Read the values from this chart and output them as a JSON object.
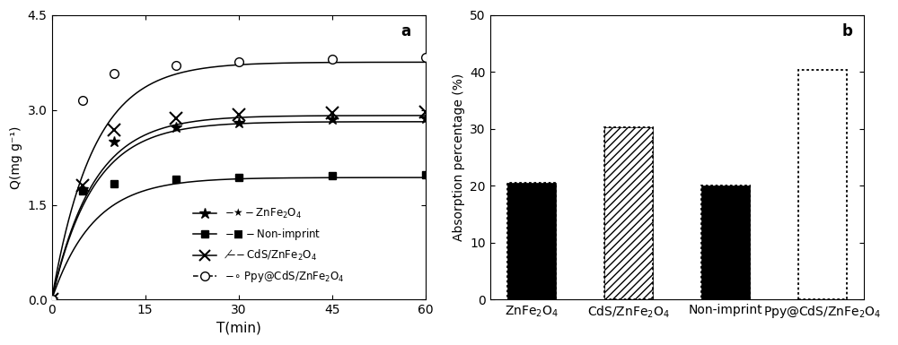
{
  "panel_a": {
    "title": "a",
    "xlabel": "T(min)",
    "ylabel": "Q(mg g⁻¹)",
    "xlim": [
      0,
      60
    ],
    "ylim": [
      0.0,
      4.5
    ],
    "yticks": [
      0.0,
      1.5,
      3.0,
      4.5
    ],
    "xticks": [
      0,
      15,
      30,
      45,
      60
    ],
    "series": {
      "ZnFe2O4": {
        "data_x": [
          0,
          5,
          10,
          20,
          30,
          45,
          60
        ],
        "data_y": [
          0.0,
          1.75,
          2.5,
          2.72,
          2.8,
          2.85,
          2.87
        ]
      },
      "Non-imprint": {
        "data_x": [
          0,
          5,
          10,
          20,
          30,
          45,
          60
        ],
        "data_y": [
          0.0,
          1.72,
          1.83,
          1.9,
          1.93,
          1.96,
          1.97
        ]
      },
      "CdS/ZnFe2O4": {
        "data_x": [
          0,
          5,
          10,
          20,
          30,
          45,
          60
        ],
        "data_y": [
          0.0,
          1.8,
          2.68,
          2.86,
          2.92,
          2.95,
          2.97
        ]
      },
      "Ppy@CdS/ZnFe2O4": {
        "data_x": [
          0,
          5,
          10,
          20,
          30,
          45,
          60
        ],
        "data_y": [
          0.0,
          3.15,
          3.58,
          3.7,
          3.76,
          3.8,
          3.83
        ]
      }
    }
  },
  "panel_b": {
    "title": "b",
    "ylabel": "Absorption percentage (%)",
    "ylim": [
      0,
      50
    ],
    "yticks": [
      0,
      10,
      20,
      30,
      40,
      50
    ],
    "categories": [
      "ZnFe₂O₄",
      "CdS/ZnFe₂O₄",
      "Non-imprint",
      "Ppy@CdS/ZnFe₂O₄"
    ],
    "values": [
      20.5,
      30.3,
      20.0,
      40.3
    ],
    "bar_styles": [
      "solid_black_dotborder",
      "hatched_diagonal_dotborder",
      "solid_black_dotborder",
      "empty_dotborder"
    ]
  }
}
